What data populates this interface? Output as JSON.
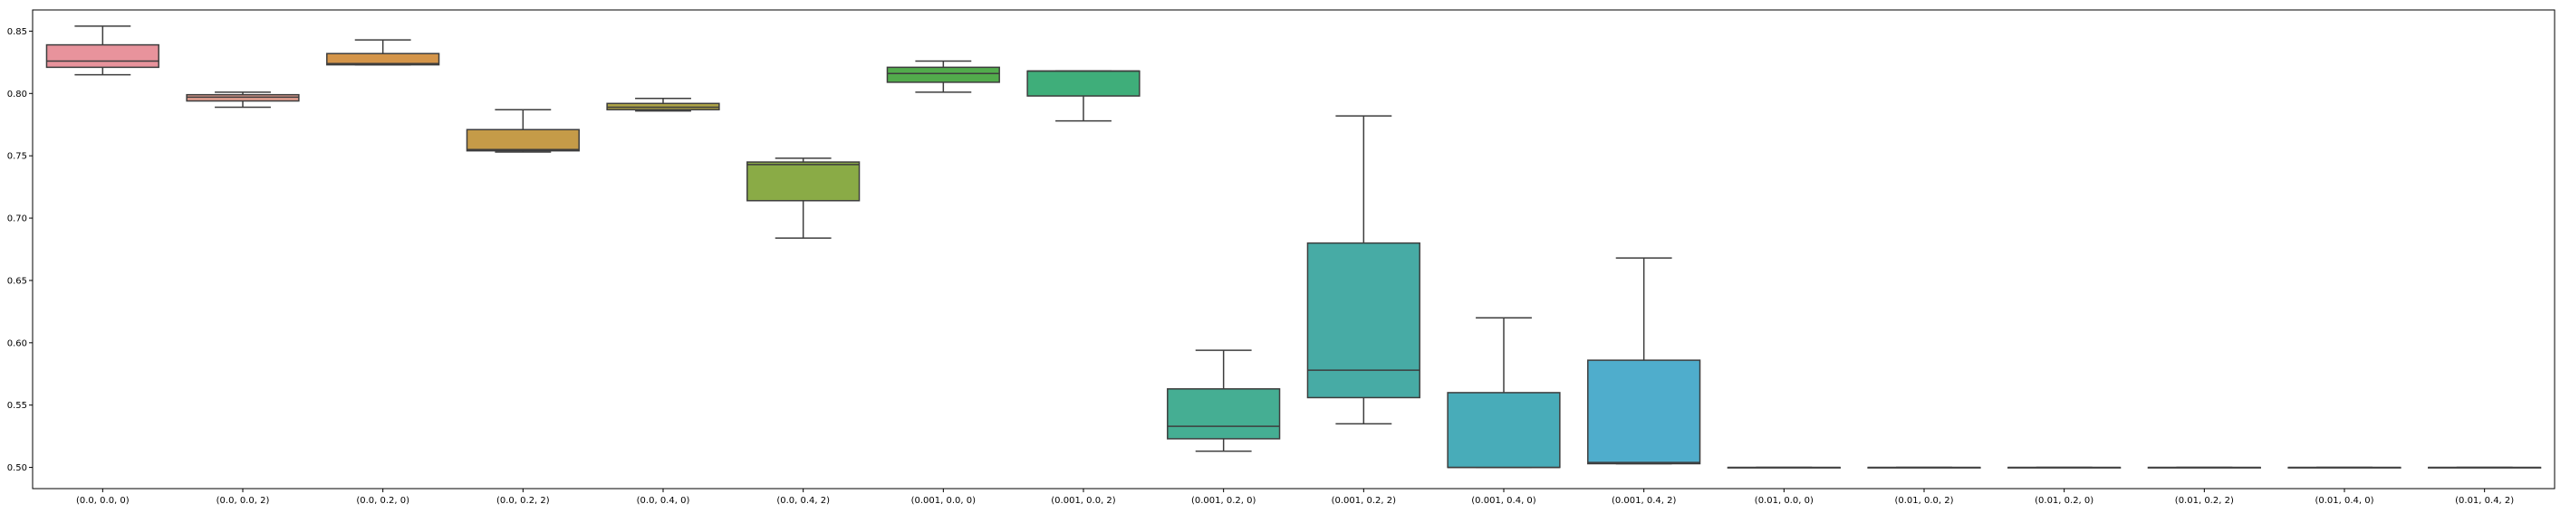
{
  "chart_data": {
    "type": "box",
    "title": "",
    "xlabel": "",
    "ylabel": "",
    "ylim": [
      0.483,
      0.867
    ],
    "yticks": [
      0.5,
      0.55,
      0.6,
      0.65,
      0.7,
      0.75,
      0.8,
      0.85
    ],
    "ytick_labels": [
      "0.50",
      "0.55",
      "0.60",
      "0.65",
      "0.70",
      "0.75",
      "0.80",
      "0.85"
    ],
    "grid": false,
    "categories": [
      "(0.0, 0.0, 0)",
      "(0.0, 0.0, 2)",
      "(0.0, 0.2, 0)",
      "(0.0, 0.2, 2)",
      "(0.0, 0.4, 0)",
      "(0.0, 0.4, 2)",
      "(0.001, 0.0, 0)",
      "(0.001, 0.0, 2)",
      "(0.001, 0.2, 0)",
      "(0.001, 0.2, 2)",
      "(0.001, 0.4, 0)",
      "(0.001, 0.4, 2)",
      "(0.01, 0.0, 0)",
      "(0.01, 0.0, 2)",
      "(0.01, 0.2, 0)",
      "(0.01, 0.2, 2)",
      "(0.01, 0.4, 0)",
      "(0.01, 0.4, 2)"
    ],
    "boxes": [
      {
        "whislo": 0.815,
        "q1": 0.821,
        "med": 0.826,
        "q3": 0.839,
        "whishi": 0.854,
        "color": "#e8939c"
      },
      {
        "whislo": 0.789,
        "q1": 0.794,
        "med": 0.797,
        "q3": 0.799,
        "whishi": 0.801,
        "color": "#e29e8f"
      },
      {
        "whislo": 0.823,
        "q1": 0.823,
        "med": 0.824,
        "q3": 0.832,
        "whishi": 0.843,
        "color": "#d4954a"
      },
      {
        "whislo": 0.753,
        "q1": 0.754,
        "med": 0.755,
        "q3": 0.771,
        "whishi": 0.787,
        "color": "#c59b48"
      },
      {
        "whislo": 0.786,
        "q1": 0.787,
        "med": 0.789,
        "q3": 0.792,
        "whishi": 0.796,
        "color": "#aea546"
      },
      {
        "whislo": 0.684,
        "q1": 0.714,
        "med": 0.743,
        "q3": 0.745,
        "whishi": 0.748,
        "color": "#8aab46"
      },
      {
        "whislo": 0.801,
        "q1": 0.809,
        "med": 0.816,
        "q3": 0.821,
        "whishi": 0.826,
        "color": "#52ab4c"
      },
      {
        "whislo": 0.778,
        "q1": 0.798,
        "med": 0.818,
        "q3": 0.818,
        "whishi": 0.818,
        "color": "#3fae7a"
      },
      {
        "whislo": 0.513,
        "q1": 0.523,
        "med": 0.533,
        "q3": 0.563,
        "whishi": 0.594,
        "color": "#45ae93"
      },
      {
        "whislo": 0.535,
        "q1": 0.556,
        "med": 0.578,
        "q3": 0.68,
        "whishi": 0.782,
        "color": "#47aba5"
      },
      {
        "whislo": 0.5,
        "q1": 0.5,
        "med": 0.5,
        "q3": 0.56,
        "whishi": 0.62,
        "color": "#48acb9"
      },
      {
        "whislo": 0.503,
        "q1": 0.503,
        "med": 0.504,
        "q3": 0.586,
        "whishi": 0.668,
        "color": "#4fadcc"
      },
      {
        "whislo": 0.5,
        "q1": 0.5,
        "med": 0.5,
        "q3": 0.5,
        "whishi": 0.5,
        "color": "#5ab0d6"
      },
      {
        "whislo": 0.5,
        "q1": 0.5,
        "med": 0.5,
        "q3": 0.5,
        "whishi": 0.5,
        "color": "#6aa8dc"
      },
      {
        "whislo": 0.5,
        "q1": 0.5,
        "med": 0.5,
        "q3": 0.5,
        "whishi": 0.5,
        "color": "#8f9fe0"
      },
      {
        "whislo": 0.5,
        "q1": 0.5,
        "med": 0.5,
        "q3": 0.5,
        "whishi": 0.5,
        "color": "#b39ae0"
      },
      {
        "whislo": 0.5,
        "q1": 0.5,
        "med": 0.5,
        "q3": 0.5,
        "whishi": 0.5,
        "color": "#d48fd6"
      },
      {
        "whislo": 0.5,
        "q1": 0.5,
        "med": 0.5,
        "q3": 0.5,
        "whishi": 0.5,
        "color": "#e394c4"
      }
    ],
    "frame_color": "#000000",
    "line_color": "#3d3d3d"
  }
}
